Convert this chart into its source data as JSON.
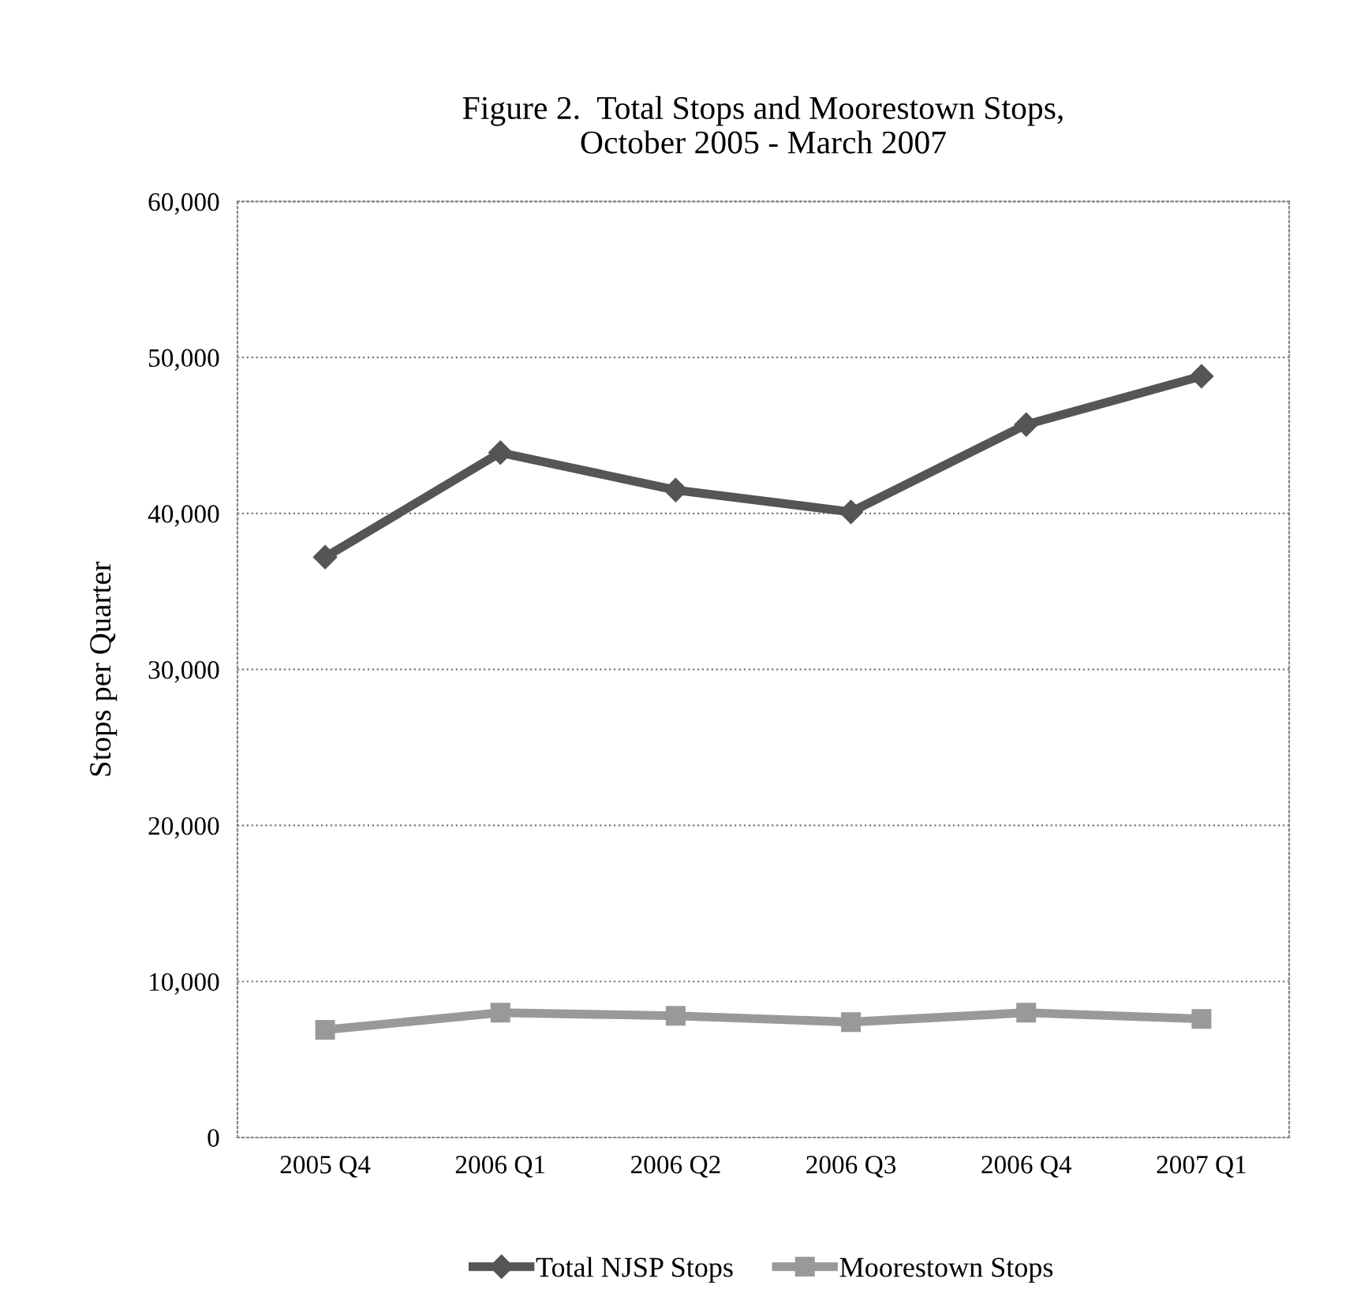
{
  "chart_data": {
    "type": "line",
    "title": "Figure 2.  Total Stops and Moorestown Stops,\nOctober 2005 - March 2007",
    "ylabel": "Stops per Quarter",
    "categories": [
      "2005 Q4",
      "2006 Q1",
      "2006 Q2",
      "2006 Q3",
      "2006 Q4",
      "2007 Q1"
    ],
    "series": [
      {
        "name": "Total NJSP Stops",
        "color": "#555555",
        "marker": "diamond",
        "values": [
          37200,
          43900,
          41500,
          40100,
          45700,
          48800
        ]
      },
      {
        "name": "Moorestown Stops",
        "color": "#999999",
        "marker": "square",
        "values": [
          6900,
          8000,
          7800,
          7400,
          8000,
          7600
        ]
      }
    ],
    "ylim": [
      0,
      60000
    ],
    "yticks": [
      0,
      {
        "value": 10000,
        "label": "10,000"
      },
      {
        "value": 20000,
        "label": "20,000"
      },
      {
        "value": 30000,
        "label": "30,000"
      },
      {
        "value": 40000,
        "label": "40,000"
      },
      {
        "value": 50000,
        "label": "50,000"
      },
      {
        "value": 60000,
        "label": "60,000"
      }
    ],
    "grid": "y",
    "legend": "bottom",
    "line_style": "solid"
  }
}
